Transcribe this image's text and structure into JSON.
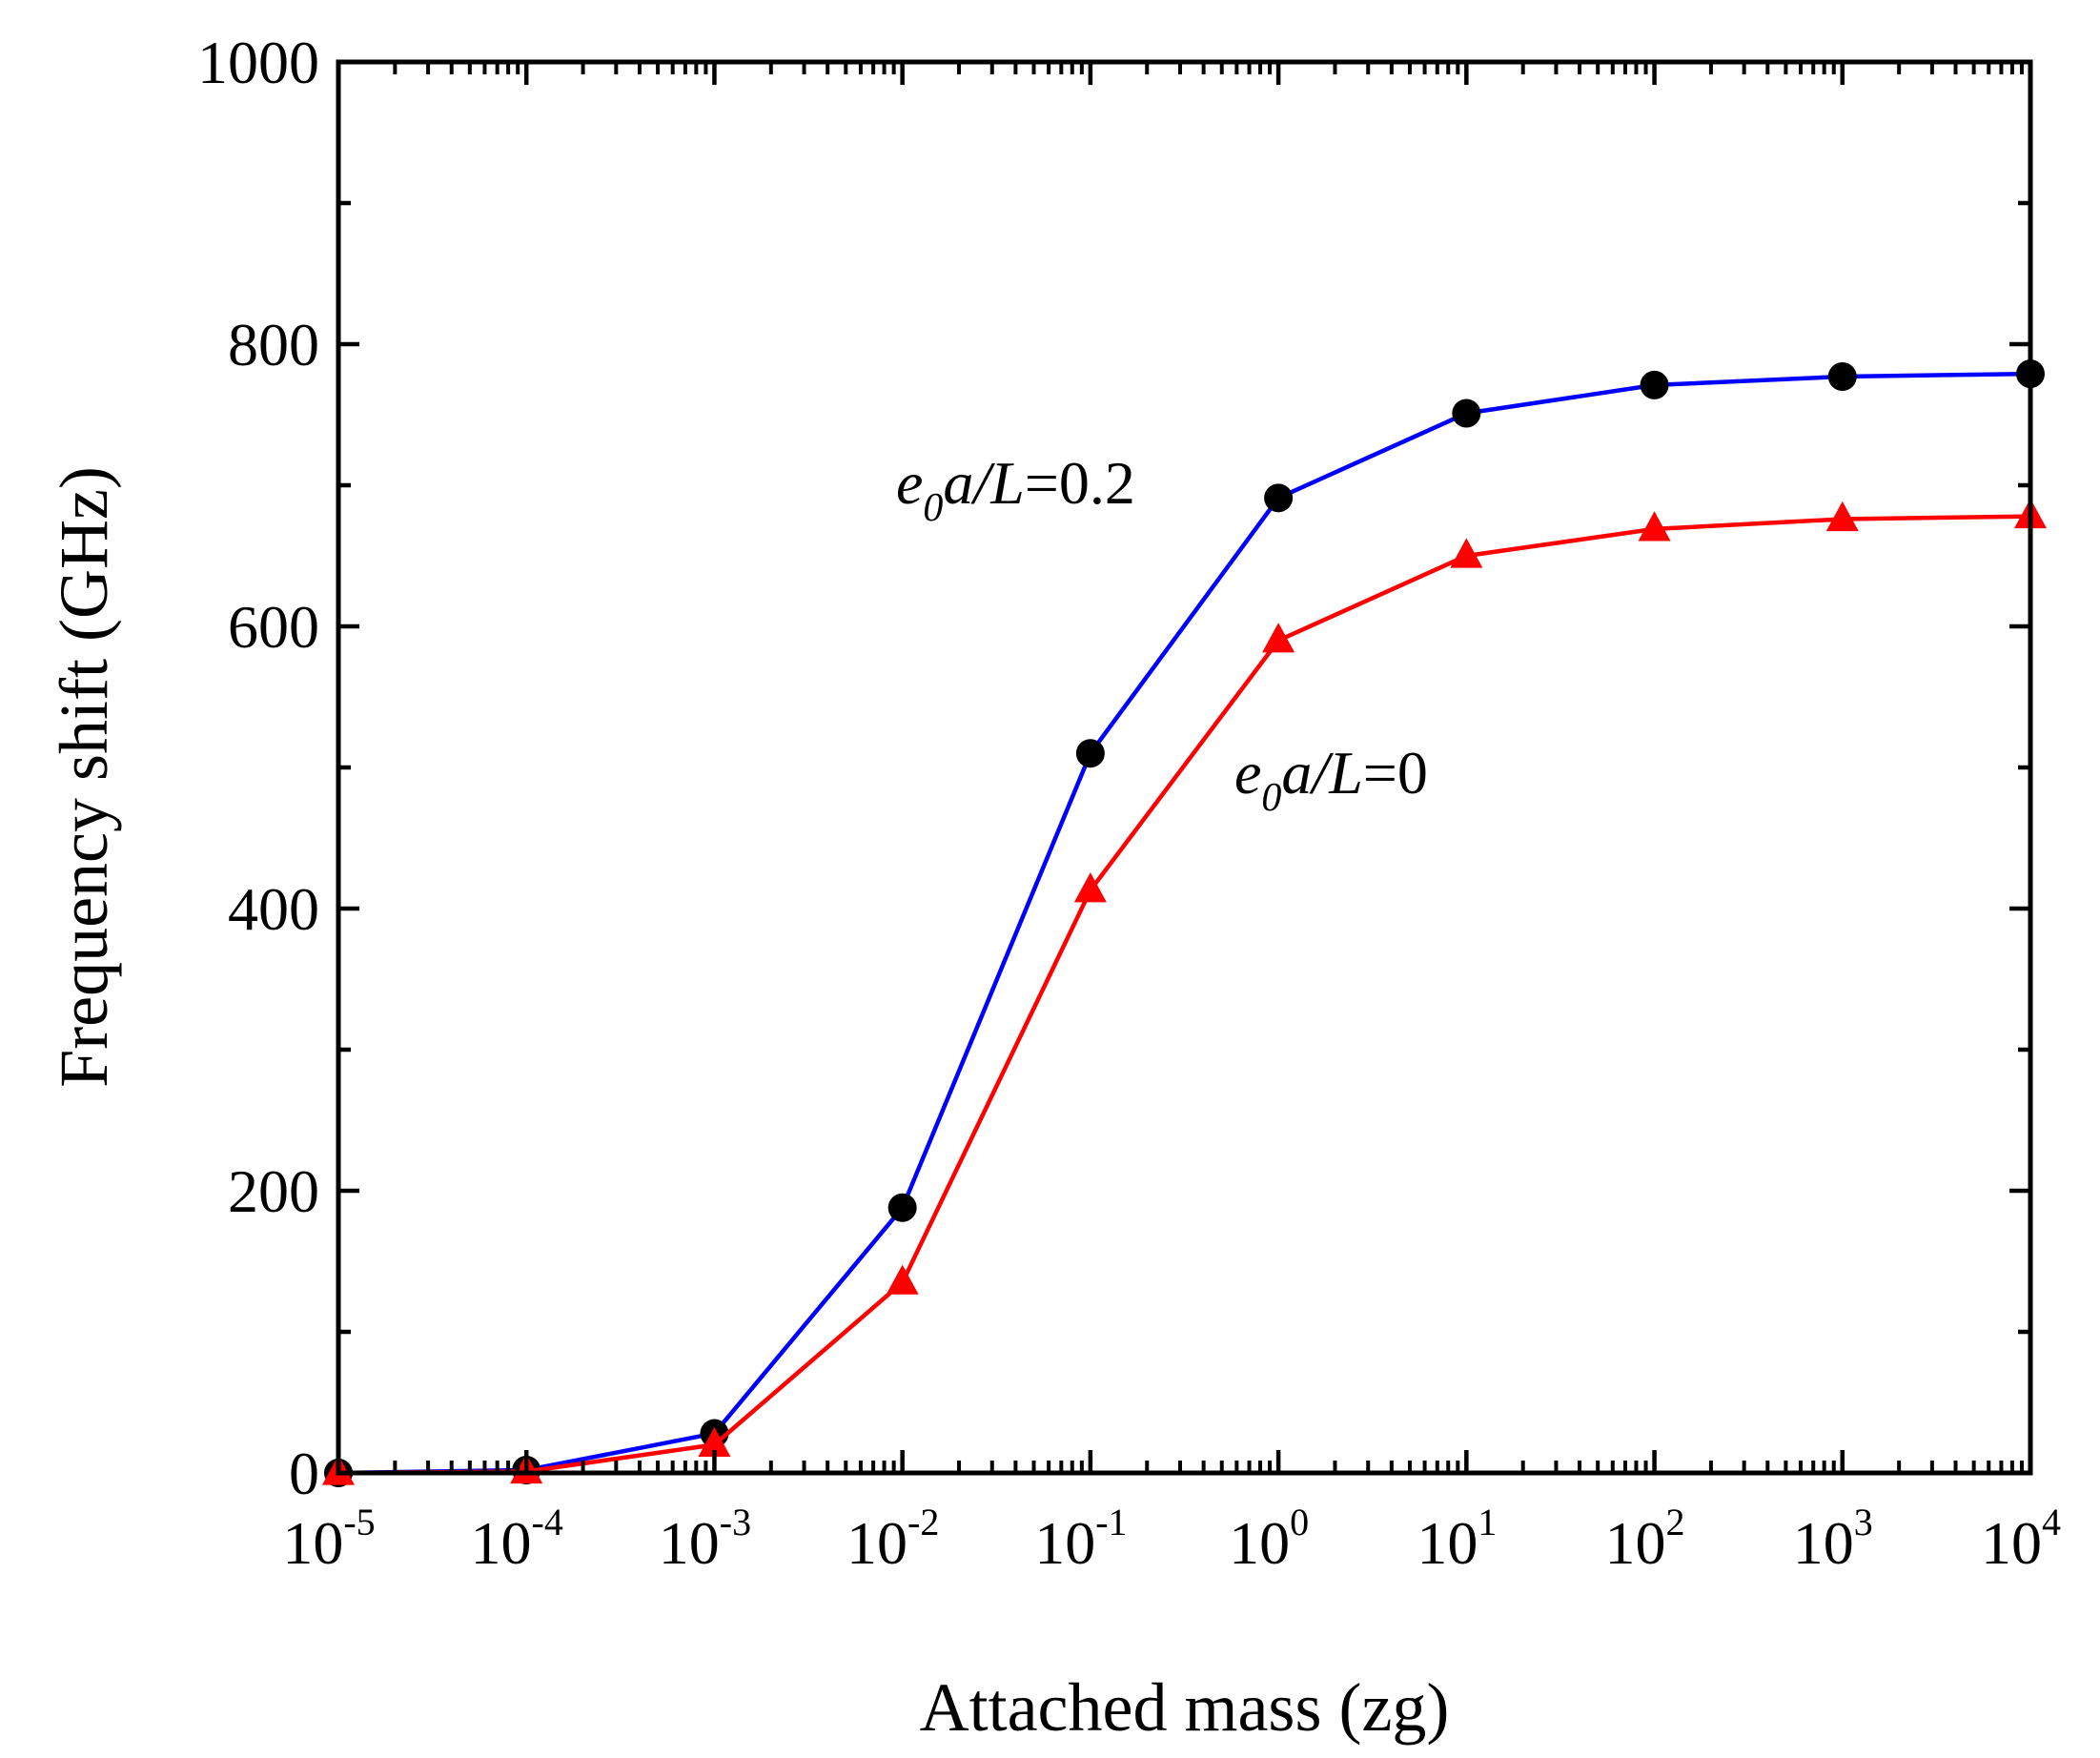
{
  "chart_data": {
    "type": "line",
    "title": "",
    "xlabel": "Attached mass (zg)",
    "ylabel": "Frequency shift (GHz)",
    "xscale": "log",
    "xlim": [
      1e-05,
      10000.0
    ],
    "ylim": [
      0,
      1000
    ],
    "grid": false,
    "x": [
      1e-05,
      0.0001,
      0.001,
      0.01,
      0.1,
      1,
      10,
      100,
      1000,
      10000
    ],
    "x_ticks": [
      {
        "base": "10",
        "exp": "-5"
      },
      {
        "base": "10",
        "exp": "-4"
      },
      {
        "base": "10",
        "exp": "-3"
      },
      {
        "base": "10",
        "exp": "-2"
      },
      {
        "base": "10",
        "exp": "-1"
      },
      {
        "base": "10",
        "exp": "0"
      },
      {
        "base": "10",
        "exp": "1"
      },
      {
        "base": "10",
        "exp": "2"
      },
      {
        "base": "10",
        "exp": "3"
      },
      {
        "base": "10",
        "exp": "4"
      }
    ],
    "y_ticks": [
      "0",
      "200",
      "400",
      "600",
      "800",
      "1000"
    ],
    "series": [
      {
        "name": "e0a/L=0.2",
        "color": "#0000ff",
        "marker": "circle",
        "marker_color": "#000000",
        "values": [
          0,
          2,
          28,
          188,
          510,
          691,
          751,
          771,
          777,
          779
        ]
      },
      {
        "name": "e0a/L=0",
        "color": "#ff0000",
        "marker": "triangle",
        "marker_color": "#ff0000",
        "values": [
          0,
          1,
          20,
          135,
          413,
          590,
          650,
          669,
          676,
          678
        ]
      }
    ],
    "annotations": [
      {
        "series": 0,
        "italic1": "e",
        "sub": "0",
        "italic2": "a/L",
        "rest": "=0.2"
      },
      {
        "series": 1,
        "italic1": "e",
        "sub": "0",
        "italic2": "a/L",
        "rest": "=0"
      }
    ]
  }
}
